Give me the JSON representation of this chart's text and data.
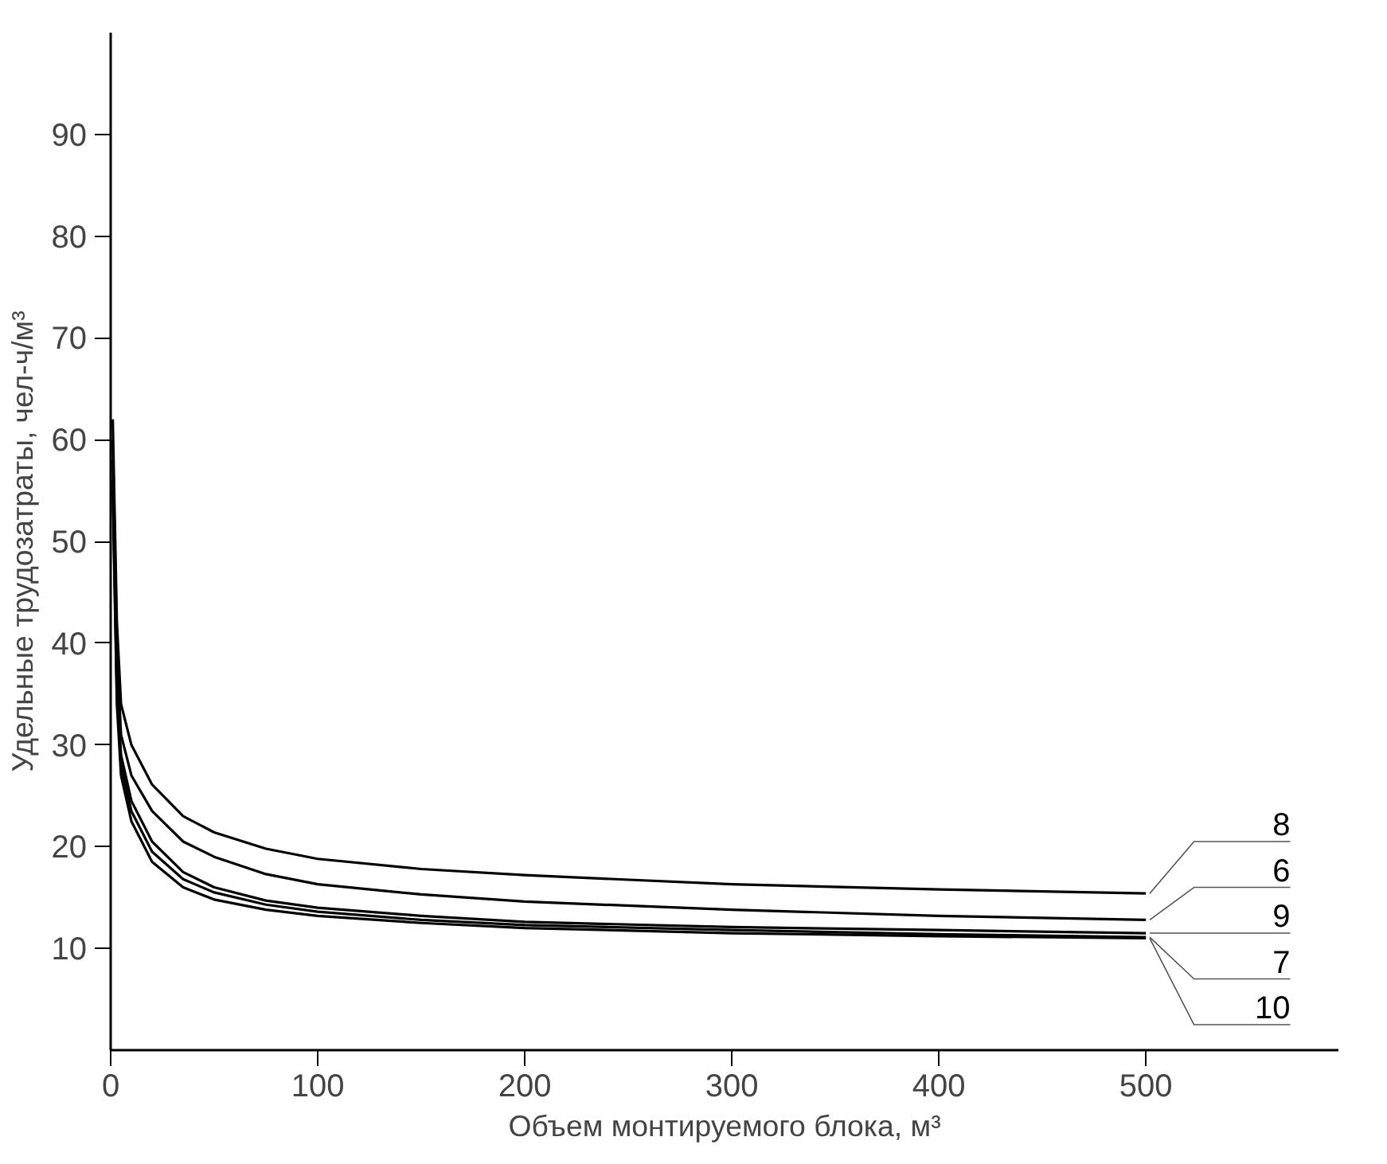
{
  "chart_data": {
    "type": "line",
    "xlabel": "Объем монтируемого блока, м³",
    "ylabel": "Удельные трудозатраты, чел-ч/м³",
    "x": [
      1,
      3,
      5,
      10,
      20,
      35,
      50,
      75,
      100,
      150,
      200,
      300,
      400,
      500
    ],
    "series": [
      {
        "name": "8",
        "color": "#000000",
        "values": [
          62,
          42,
          34,
          30,
          26.1,
          23,
          21.4,
          19.8,
          18.8,
          17.8,
          17.2,
          16.3,
          15.8,
          15.4
        ]
      },
      {
        "name": "6",
        "color": "#000000",
        "values": [
          60,
          39,
          31,
          27,
          23.5,
          20.5,
          19,
          17.3,
          16.3,
          15.3,
          14.6,
          13.8,
          13.2,
          12.8
        ]
      },
      {
        "name": "9",
        "color": "#000000",
        "values": [
          58,
          36,
          29,
          24.5,
          20.5,
          17.5,
          16,
          14.7,
          14,
          13.2,
          12.6,
          12.1,
          11.8,
          11.5
        ]
      },
      {
        "name": "7",
        "color": "#000000",
        "values": [
          56,
          35,
          28,
          23.5,
          19.5,
          16.8,
          15.5,
          14.3,
          13.6,
          12.8,
          12.3,
          11.8,
          11.4,
          11.1
        ]
      },
      {
        "name": "10",
        "color": "#000000",
        "values": [
          55,
          34,
          27,
          22.5,
          18.5,
          16,
          14.8,
          13.8,
          13.2,
          12.5,
          12,
          11.5,
          11.2,
          11.0
        ]
      }
    ],
    "xlim": [
      0,
      593
    ],
    "ylim": [
      0,
      100
    ],
    "xticks": [
      0,
      100,
      200,
      300,
      400,
      500
    ],
    "yticks": [
      10,
      20,
      30,
      40,
      50,
      60,
      70,
      80,
      90
    ],
    "grid": false,
    "line_style": "solid",
    "marker": "none"
  }
}
